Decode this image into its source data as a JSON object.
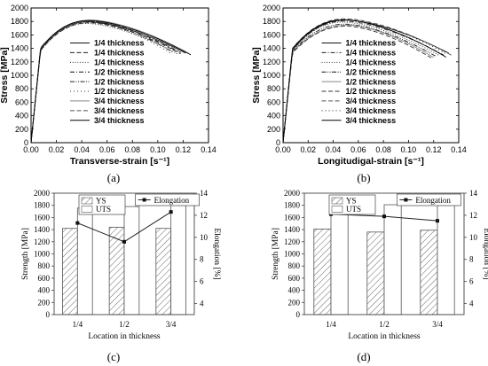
{
  "figure": {
    "panel_labels": [
      "(a)",
      "(b)",
      "(c)",
      "(d)"
    ]
  },
  "chart_data": [
    {
      "panel": "(a)",
      "type": "line",
      "title": "",
      "xlabel": "Transverse-strain [s⁻¹]",
      "ylabel": "Stress [MPa]",
      "xlim": [
        0.0,
        0.14
      ],
      "ylim": [
        0,
        2000
      ],
      "xticks": [
        "0.00",
        "0.02",
        "0.04",
        "0.06",
        "0.08",
        "0.10",
        "0.12",
        "0.14"
      ],
      "yticks": [
        "0",
        "200",
        "400",
        "600",
        "800",
        "1000",
        "1200",
        "1400",
        "1600",
        "1800",
        "2000"
      ],
      "grid": false,
      "legend_position": "right",
      "series": [
        {
          "name": "1/4 thickness",
          "style": "solid",
          "color": "#111111",
          "yield": 1380,
          "peak": 1795,
          "peak_strain": 0.045,
          "end_strain": 0.122,
          "end_stress": 1330
        },
        {
          "name": "1/4 thickness",
          "style": "dashed",
          "color": "#222222",
          "yield": 1370,
          "peak": 1780,
          "peak_strain": 0.046,
          "end_strain": 0.118,
          "end_stress": 1320
        },
        {
          "name": "1/4 thickness",
          "style": "dotted",
          "color": "#333333",
          "yield": 1360,
          "peak": 1770,
          "peak_strain": 0.044,
          "end_strain": 0.116,
          "end_stress": 1315
        },
        {
          "name": "1/2 thickness",
          "style": "dashdot",
          "color": "#111111",
          "yield": 1400,
          "peak": 1810,
          "peak_strain": 0.045,
          "end_strain": 0.115,
          "end_stress": 1360
        },
        {
          "name": "1/2 thickness",
          "style": "dashdotdot",
          "color": "#222222",
          "yield": 1390,
          "peak": 1800,
          "peak_strain": 0.047,
          "end_strain": 0.112,
          "end_stress": 1340
        },
        {
          "name": "1/2 thickness",
          "style": "shortdot",
          "color": "#333333",
          "yield": 1380,
          "peak": 1790,
          "peak_strain": 0.046,
          "end_strain": 0.11,
          "end_stress": 1330
        },
        {
          "name": "3/4 thickness",
          "style": "solid",
          "color": "#888888",
          "yield": 1410,
          "peak": 1820,
          "peak_strain": 0.048,
          "end_strain": 0.124,
          "end_stress": 1330
        },
        {
          "name": "3/4 thickness",
          "style": "dashed",
          "color": "#555555",
          "yield": 1395,
          "peak": 1810,
          "peak_strain": 0.047,
          "end_strain": 0.12,
          "end_stress": 1320
        },
        {
          "name": "3/4 thickness",
          "style": "solid",
          "color": "#000000",
          "yield": 1400,
          "peak": 1815,
          "peak_strain": 0.046,
          "end_strain": 0.126,
          "end_stress": 1305
        }
      ]
    },
    {
      "panel": "(b)",
      "type": "line",
      "title": "",
      "xlabel": "Longitudigal-strain [s⁻¹]",
      "ylabel": "Stress [MPa]",
      "xlim": [
        0.0,
        0.14
      ],
      "ylim": [
        0,
        2000
      ],
      "xticks": [
        "0.00",
        "0.02",
        "0.04",
        "0.06",
        "0.08",
        "0.10",
        "0.12",
        "0.14"
      ],
      "yticks": [
        "0",
        "200",
        "400",
        "600",
        "800",
        "1000",
        "1200",
        "1400",
        "1600",
        "1800",
        "2000"
      ],
      "grid": false,
      "legend_position": "right",
      "series": [
        {
          "name": "1/4 thickness",
          "style": "solid",
          "color": "#111111",
          "yield": 1380,
          "peak": 1820,
          "peak_strain": 0.05,
          "end_strain": 0.132,
          "end_stress": 1330
        },
        {
          "name": "1/4 thickness",
          "style": "dashdot",
          "color": "#222222",
          "yield": 1370,
          "peak": 1805,
          "peak_strain": 0.049,
          "end_strain": 0.128,
          "end_stress": 1300
        },
        {
          "name": "1/4 thickness",
          "style": "dotted",
          "color": "#333333",
          "yield": 1360,
          "peak": 1790,
          "peak_strain": 0.048,
          "end_strain": 0.125,
          "end_stress": 1290
        },
        {
          "name": "1/2 thickness",
          "style": "dashdotdot",
          "color": "#111111",
          "yield": 1350,
          "peak": 1760,
          "peak_strain": 0.05,
          "end_strain": 0.122,
          "end_stress": 1280
        },
        {
          "name": "1/2 thickness",
          "style": "solid",
          "color": "#888888",
          "yield": 1340,
          "peak": 1745,
          "peak_strain": 0.052,
          "end_strain": 0.12,
          "end_stress": 1265
        },
        {
          "name": "1/2 thickness",
          "style": "dashed",
          "color": "#333333",
          "yield": 1330,
          "peak": 1730,
          "peak_strain": 0.051,
          "end_strain": 0.118,
          "end_stress": 1260
        },
        {
          "name": "3/4 thickness",
          "style": "dashed",
          "color": "#555555",
          "yield": 1400,
          "peak": 1840,
          "peak_strain": 0.05,
          "end_strain": 0.134,
          "end_stress": 1300
        },
        {
          "name": "3/4 thickness",
          "style": "shortdot",
          "color": "#222222",
          "yield": 1390,
          "peak": 1830,
          "peak_strain": 0.051,
          "end_strain": 0.131,
          "end_stress": 1310
        },
        {
          "name": "3/4 thickness",
          "style": "solid",
          "color": "#000000",
          "yield": 1395,
          "peak": 1825,
          "peak_strain": 0.049,
          "end_strain": 0.13,
          "end_stress": 1270
        }
      ]
    },
    {
      "panel": "(c)",
      "type": "bar",
      "title": "",
      "xlabel": "Location in thickness",
      "ylabel": "Strength [MPa]",
      "y2label": "Elongation [%]",
      "categories": [
        "1/4",
        "1/2",
        "3/4"
      ],
      "ylim": [
        0,
        2000
      ],
      "y2lim": [
        3,
        14
      ],
      "yticks": [
        "0",
        "200",
        "400",
        "600",
        "800",
        "1000",
        "1200",
        "1400",
        "1600",
        "1800",
        "2000"
      ],
      "y2ticks": [
        "4",
        "6",
        "8",
        "10",
        "12",
        "14"
      ],
      "grid": false,
      "legend_position": "top",
      "series": [
        {
          "name": "YS",
          "fill": "hatch",
          "values": [
            1420,
            1440,
            1420
          ]
        },
        {
          "name": "UTS",
          "fill": "white",
          "values": [
            1755,
            1780,
            1800
          ]
        }
      ],
      "line_series": {
        "name": "Elongation",
        "axis": "y2",
        "values": [
          11.3,
          9.6,
          12.3
        ]
      }
    },
    {
      "panel": "(d)",
      "type": "bar",
      "title": "",
      "xlabel": "Location in thickness",
      "ylabel": "Strength [MPa]",
      "y2label": "Elongation [%]",
      "categories": [
        "1/4",
        "1/2",
        "3/4"
      ],
      "ylim": [
        0,
        2000
      ],
      "y2lim": [
        3,
        14
      ],
      "yticks": [
        "0",
        "200",
        "400",
        "600",
        "800",
        "1000",
        "1200",
        "1400",
        "1600",
        "1800",
        "2000"
      ],
      "y2ticks": [
        "4",
        "6",
        "8",
        "10",
        "12",
        "14"
      ],
      "grid": false,
      "legend_position": "top",
      "series": [
        {
          "name": "YS",
          "fill": "hatch",
          "values": [
            1410,
            1360,
            1390
          ]
        },
        {
          "name": "UTS",
          "fill": "white",
          "values": [
            1790,
            1810,
            1800
          ]
        }
      ],
      "line_series": {
        "name": "Elongation",
        "axis": "y2",
        "values": [
          12.1,
          11.9,
          11.5
        ]
      }
    }
  ]
}
